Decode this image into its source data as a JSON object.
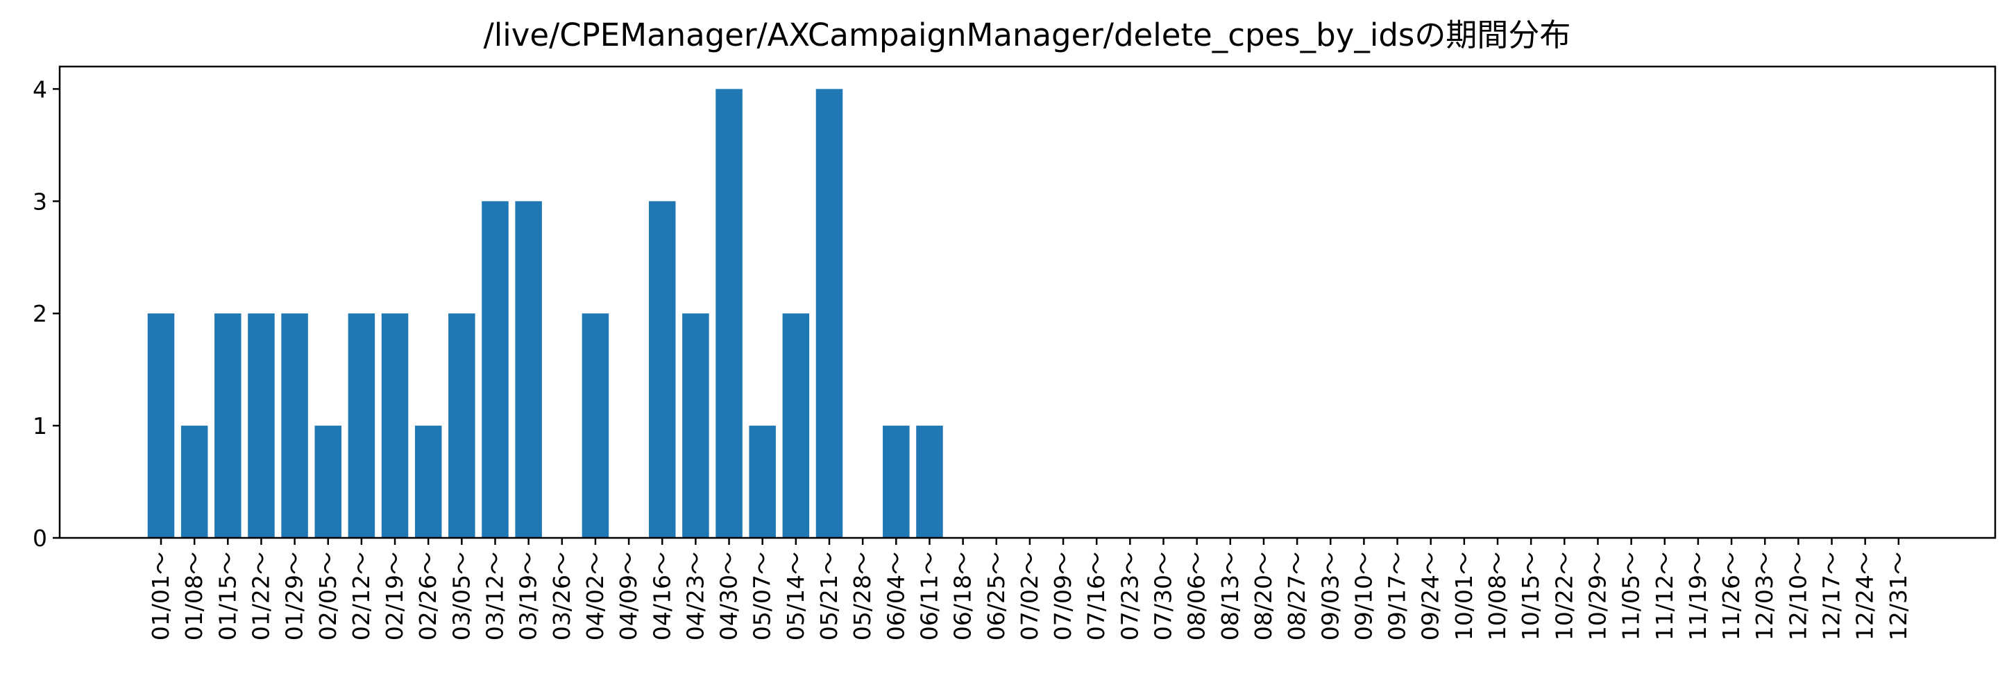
{
  "chart_data": {
    "type": "bar",
    "title": "/live/CPEManager/AXCampaignManager/delete_cpes_by_idsの期間分布",
    "xlabel": "",
    "ylabel": "",
    "ylim": [
      0,
      4.2
    ],
    "yticks": [
      0,
      1,
      2,
      3,
      4
    ],
    "grid": false,
    "legend": "none",
    "bar_color": "#1f77b4",
    "categories": [
      "01/01～",
      "01/08～",
      "01/15～",
      "01/22～",
      "01/29～",
      "02/05～",
      "02/12～",
      "02/19～",
      "02/26～",
      "03/05～",
      "03/12～",
      "03/19～",
      "03/26～",
      "04/02～",
      "04/09～",
      "04/16～",
      "04/23～",
      "04/30～",
      "05/07～",
      "05/14～",
      "05/21～",
      "05/28～",
      "06/04～",
      "06/11～",
      "06/18～",
      "06/25～",
      "07/02～",
      "07/09～",
      "07/16～",
      "07/23～",
      "07/30～",
      "08/06～",
      "08/13～",
      "08/20～",
      "08/27～",
      "09/03～",
      "09/10～",
      "09/17～",
      "09/24～",
      "10/01～",
      "10/08～",
      "10/15～",
      "10/22～",
      "10/29～",
      "11/05～",
      "11/12～",
      "11/19～",
      "11/26～",
      "12/03～",
      "12/10～",
      "12/17～",
      "12/24～",
      "12/31～"
    ],
    "values": [
      2,
      1,
      2,
      2,
      2,
      1,
      2,
      2,
      1,
      2,
      3,
      3,
      0,
      2,
      0,
      3,
      2,
      4,
      1,
      2,
      4,
      0,
      1,
      1,
      0,
      0,
      0,
      0,
      0,
      0,
      0,
      0,
      0,
      0,
      0,
      0,
      0,
      0,
      0,
      0,
      0,
      0,
      0,
      0,
      0,
      0,
      0,
      0,
      0,
      0,
      0,
      0,
      0
    ]
  }
}
